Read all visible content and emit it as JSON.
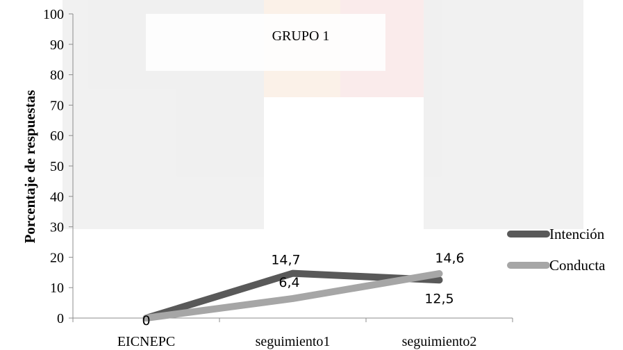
{
  "chart_data": {
    "type": "line",
    "title": "GRUPO 1",
    "xlabel": "",
    "ylabel": "Porcentaje de respuestas",
    "categories": [
      "EICNEPC",
      "seguimiento1",
      "seguimiento2"
    ],
    "ylim": [
      0,
      100
    ],
    "yticks": [
      0,
      10,
      20,
      30,
      40,
      50,
      60,
      70,
      80,
      90,
      100
    ],
    "grid": false,
    "legend_position": "right",
    "series": [
      {
        "name": "Intención",
        "values": [
          0,
          14.7,
          12.5
        ],
        "labels": [
          "0",
          "14,7",
          "12,5"
        ],
        "color": "#595959"
      },
      {
        "name": "Conducta",
        "values": [
          0,
          6.4,
          14.6
        ],
        "labels": [
          "",
          "6,4",
          "14,6"
        ],
        "color": "#a6a6a6"
      }
    ]
  }
}
